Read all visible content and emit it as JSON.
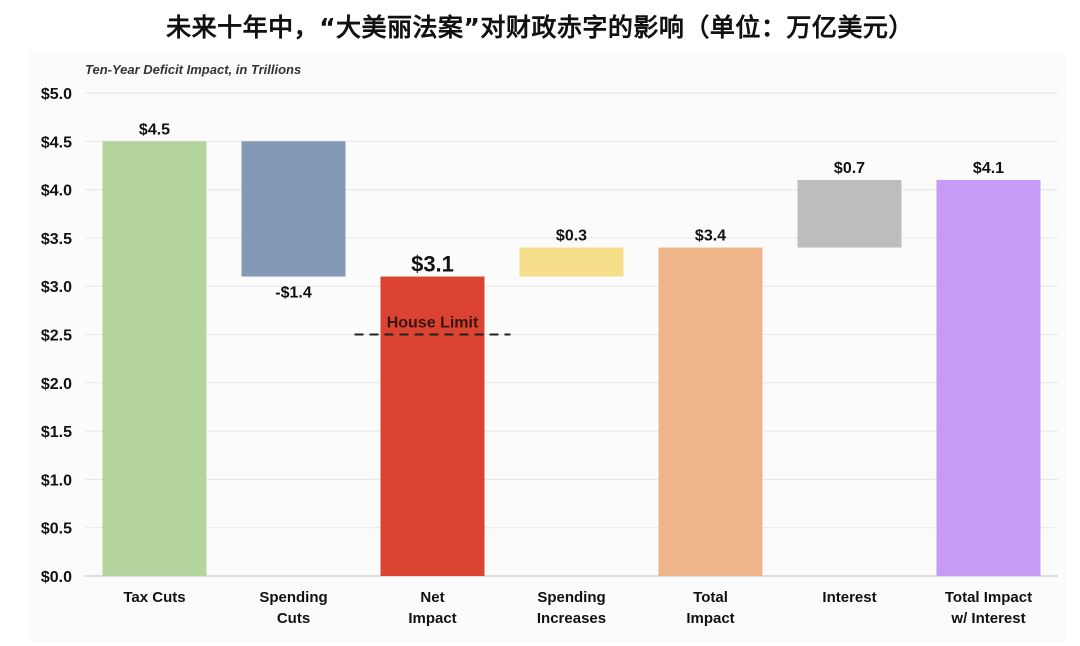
{
  "title": "未来十年中，“大美丽法案”对财政赤字的影响（单位：万亿美元）",
  "chart_data": {
    "type": "bar",
    "subtitle": "Ten-Year Deficit Impact, in Trillions",
    "categories": [
      [
        "Tax Cuts"
      ],
      [
        "Spending",
        "Cuts"
      ],
      [
        "Net",
        "Impact"
      ],
      [
        "Spending",
        "Increases"
      ],
      [
        "Total",
        "Impact"
      ],
      [
        "Interest"
      ],
      [
        "Total Impact",
        "w/ Interest"
      ]
    ],
    "bars": [
      {
        "bottom": 0.0,
        "top": 4.5,
        "label": "$4.5",
        "label_pos": "above",
        "color": "#b3d49c"
      },
      {
        "bottom": 3.1,
        "top": 4.5,
        "label": "-$1.4",
        "label_pos": "below",
        "color": "#8399b5"
      },
      {
        "bottom": 0.0,
        "top": 3.1,
        "label": "$3.1",
        "label_pos": "above-big",
        "color": "#db4433"
      },
      {
        "bottom": 3.1,
        "top": 3.4,
        "label": "$0.3",
        "label_pos": "above",
        "color": "#f6de8b"
      },
      {
        "bottom": 0.0,
        "top": 3.4,
        "label": "$3.4",
        "label_pos": "above",
        "color": "#efb58a"
      },
      {
        "bottom": 3.4,
        "top": 4.1,
        "label": "$0.7",
        "label_pos": "above",
        "color": "#bdbdbd"
      },
      {
        "bottom": 0.0,
        "top": 4.1,
        "label": "$4.1",
        "label_pos": "above",
        "color": "#c59bf5"
      }
    ],
    "ylim": [
      0,
      5.0
    ],
    "yticks": [
      "$0.0",
      "$0.5",
      "$1.0",
      "$1.5",
      "$2.0",
      "$2.5",
      "$3.0",
      "$3.5",
      "$4.0",
      "$4.5",
      "$5.0"
    ],
    "grid": true,
    "reference_line": {
      "label": "House Limit",
      "value": 2.5,
      "style": "dashed",
      "color": "#222222"
    }
  }
}
